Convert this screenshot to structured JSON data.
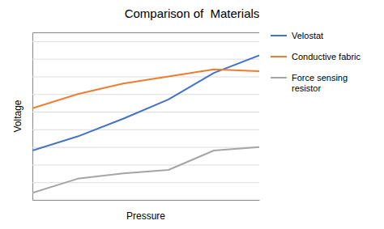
{
  "chart_data": {
    "type": "line",
    "title": "Comparison of  Materials",
    "x_label": "Pressure",
    "y_label": "Voltage",
    "x": [
      0,
      1,
      2,
      3,
      4,
      5
    ],
    "series": [
      {
        "name": "Velostat",
        "color": "#4472C4",
        "values": [
          0.28,
          0.36,
          0.46,
          0.57,
          0.72,
          0.82
        ]
      },
      {
        "name": "Conductive fabric",
        "color": "#ED7D31",
        "values": [
          0.52,
          0.6,
          0.66,
          0.7,
          0.74,
          0.73
        ]
      },
      {
        "name": "Force sensing\nresistor",
        "color": "#A5A5A5",
        "values": [
          0.04,
          0.12,
          0.15,
          0.17,
          0.28,
          0.3
        ]
      }
    ],
    "xlim": [
      0,
      5
    ],
    "ylim": [
      0,
      0.95
    ],
    "yticks": [
      0.1,
      0.2,
      0.3,
      0.4,
      0.5,
      0.6,
      0.7,
      0.8,
      0.9
    ],
    "grid": true,
    "tick_labels": false,
    "legend": "right"
  }
}
